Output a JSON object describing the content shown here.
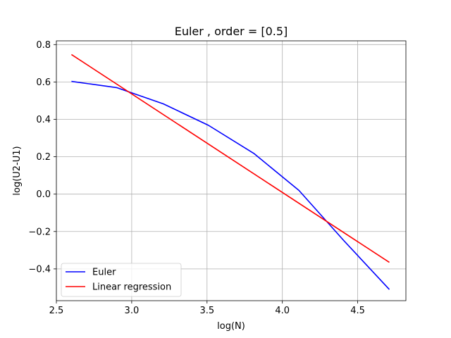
{
  "chart_data": {
    "type": "line",
    "title": "Euler , order = [0.5]",
    "xlabel": "log(N)",
    "ylabel": "log(U2-U1)",
    "xlim": [
      2.5,
      4.82
    ],
    "ylim": [
      -0.57,
      0.82
    ],
    "x_ticks": [
      2.5,
      3.0,
      3.5,
      4.0,
      4.5
    ],
    "x_tick_labels": [
      "2.5",
      "3.0",
      "3.5",
      "4.0",
      "4.5"
    ],
    "y_ticks": [
      -0.4,
      -0.2,
      0.0,
      0.2,
      0.4,
      0.6,
      0.8
    ],
    "y_tick_labels": [
      "−0.4",
      "−0.2",
      "0.0",
      "0.2",
      "0.4",
      "0.6",
      "0.8"
    ],
    "grid": true,
    "legend_position": "lower-left",
    "series": [
      {
        "name": "Euler",
        "color": "#0000ff",
        "x": [
          2.6,
          2.9,
          3.21,
          3.51,
          3.81,
          4.11,
          4.41,
          4.71
        ],
        "y": [
          0.603,
          0.57,
          0.483,
          0.368,
          0.218,
          0.02,
          -0.25,
          -0.51
        ]
      },
      {
        "name": "Linear regression",
        "color": "#ff0000",
        "x": [
          2.6,
          4.71
        ],
        "y": [
          0.747,
          -0.365
        ]
      }
    ]
  }
}
